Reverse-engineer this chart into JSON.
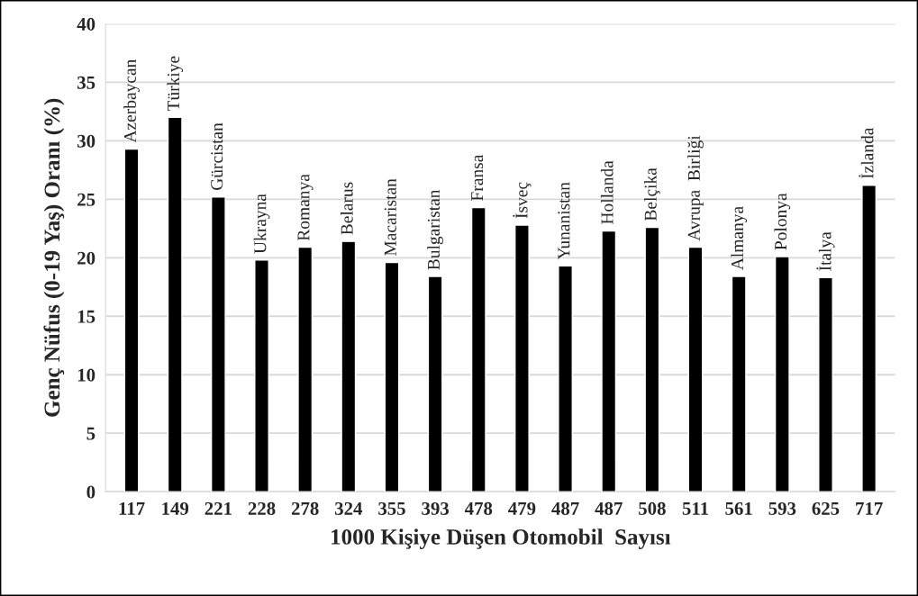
{
  "chart_data": {
    "type": "bar",
    "xlabel": "1000 Kişiye Düşen Otomobil  Sayısı",
    "ylabel": "Genç Nüfus (0-19 Yaş) Oranı (%)",
    "categories": [
      "117",
      "149",
      "221",
      "228",
      "278",
      "324",
      "355",
      "393",
      "478",
      "479",
      "487",
      "487",
      "508",
      "511",
      "561",
      "593",
      "625",
      "717"
    ],
    "values": [
      29.3,
      32.0,
      25.2,
      19.8,
      20.9,
      21.4,
      19.6,
      18.4,
      24.3,
      22.8,
      19.3,
      22.3,
      22.6,
      20.9,
      18.4,
      20.1,
      18.3,
      26.2
    ],
    "color": "#000000",
    "ylim": [
      0,
      40
    ],
    "yticks": [
      0,
      5,
      10,
      15,
      20,
      25,
      30,
      35,
      40
    ],
    "grid": "y",
    "annotations": [
      {
        "text": "Azerbaycan",
        "x": "117",
        "y": 29.3
      },
      {
        "text": "Türkiye",
        "x": "149",
        "y": 32.0
      },
      {
        "text": "Gürcistan",
        "x": "221",
        "y": 25.2
      },
      {
        "text": "Ukrayna",
        "x": "228",
        "y": 19.8
      },
      {
        "text": "Romanya",
        "x": "278",
        "y": 20.9
      },
      {
        "text": "Belarus",
        "x": "324",
        "y": 21.4
      },
      {
        "text": "Macaristan",
        "x": "355",
        "y": 19.6
      },
      {
        "text": "Bulgaristan",
        "x": "393",
        "y": 18.4
      },
      {
        "text": "Fransa",
        "x": "478",
        "y": 24.3
      },
      {
        "text": "İsveç",
        "x": "479",
        "y": 22.8
      },
      {
        "text": "Yunanistan",
        "x": "487",
        "y": 19.3
      },
      "Hollanda",
      {
        "text": "Belçika",
        "x": "508",
        "y": 22.6
      },
      {
        "text": "Avrupa  Birliği",
        "x": "511",
        "y": 20.9
      },
      {
        "text": "Almanya",
        "x": "561",
        "y": 18.4
      },
      {
        "text": "Polonya",
        "x": "593",
        "y": 20.1
      },
      {
        "text": "İtalya",
        "x": "625",
        "y": 18.3
      },
      {
        "text": "İzlanda",
        "x": "717",
        "y": 26.2
      }
    ]
  }
}
